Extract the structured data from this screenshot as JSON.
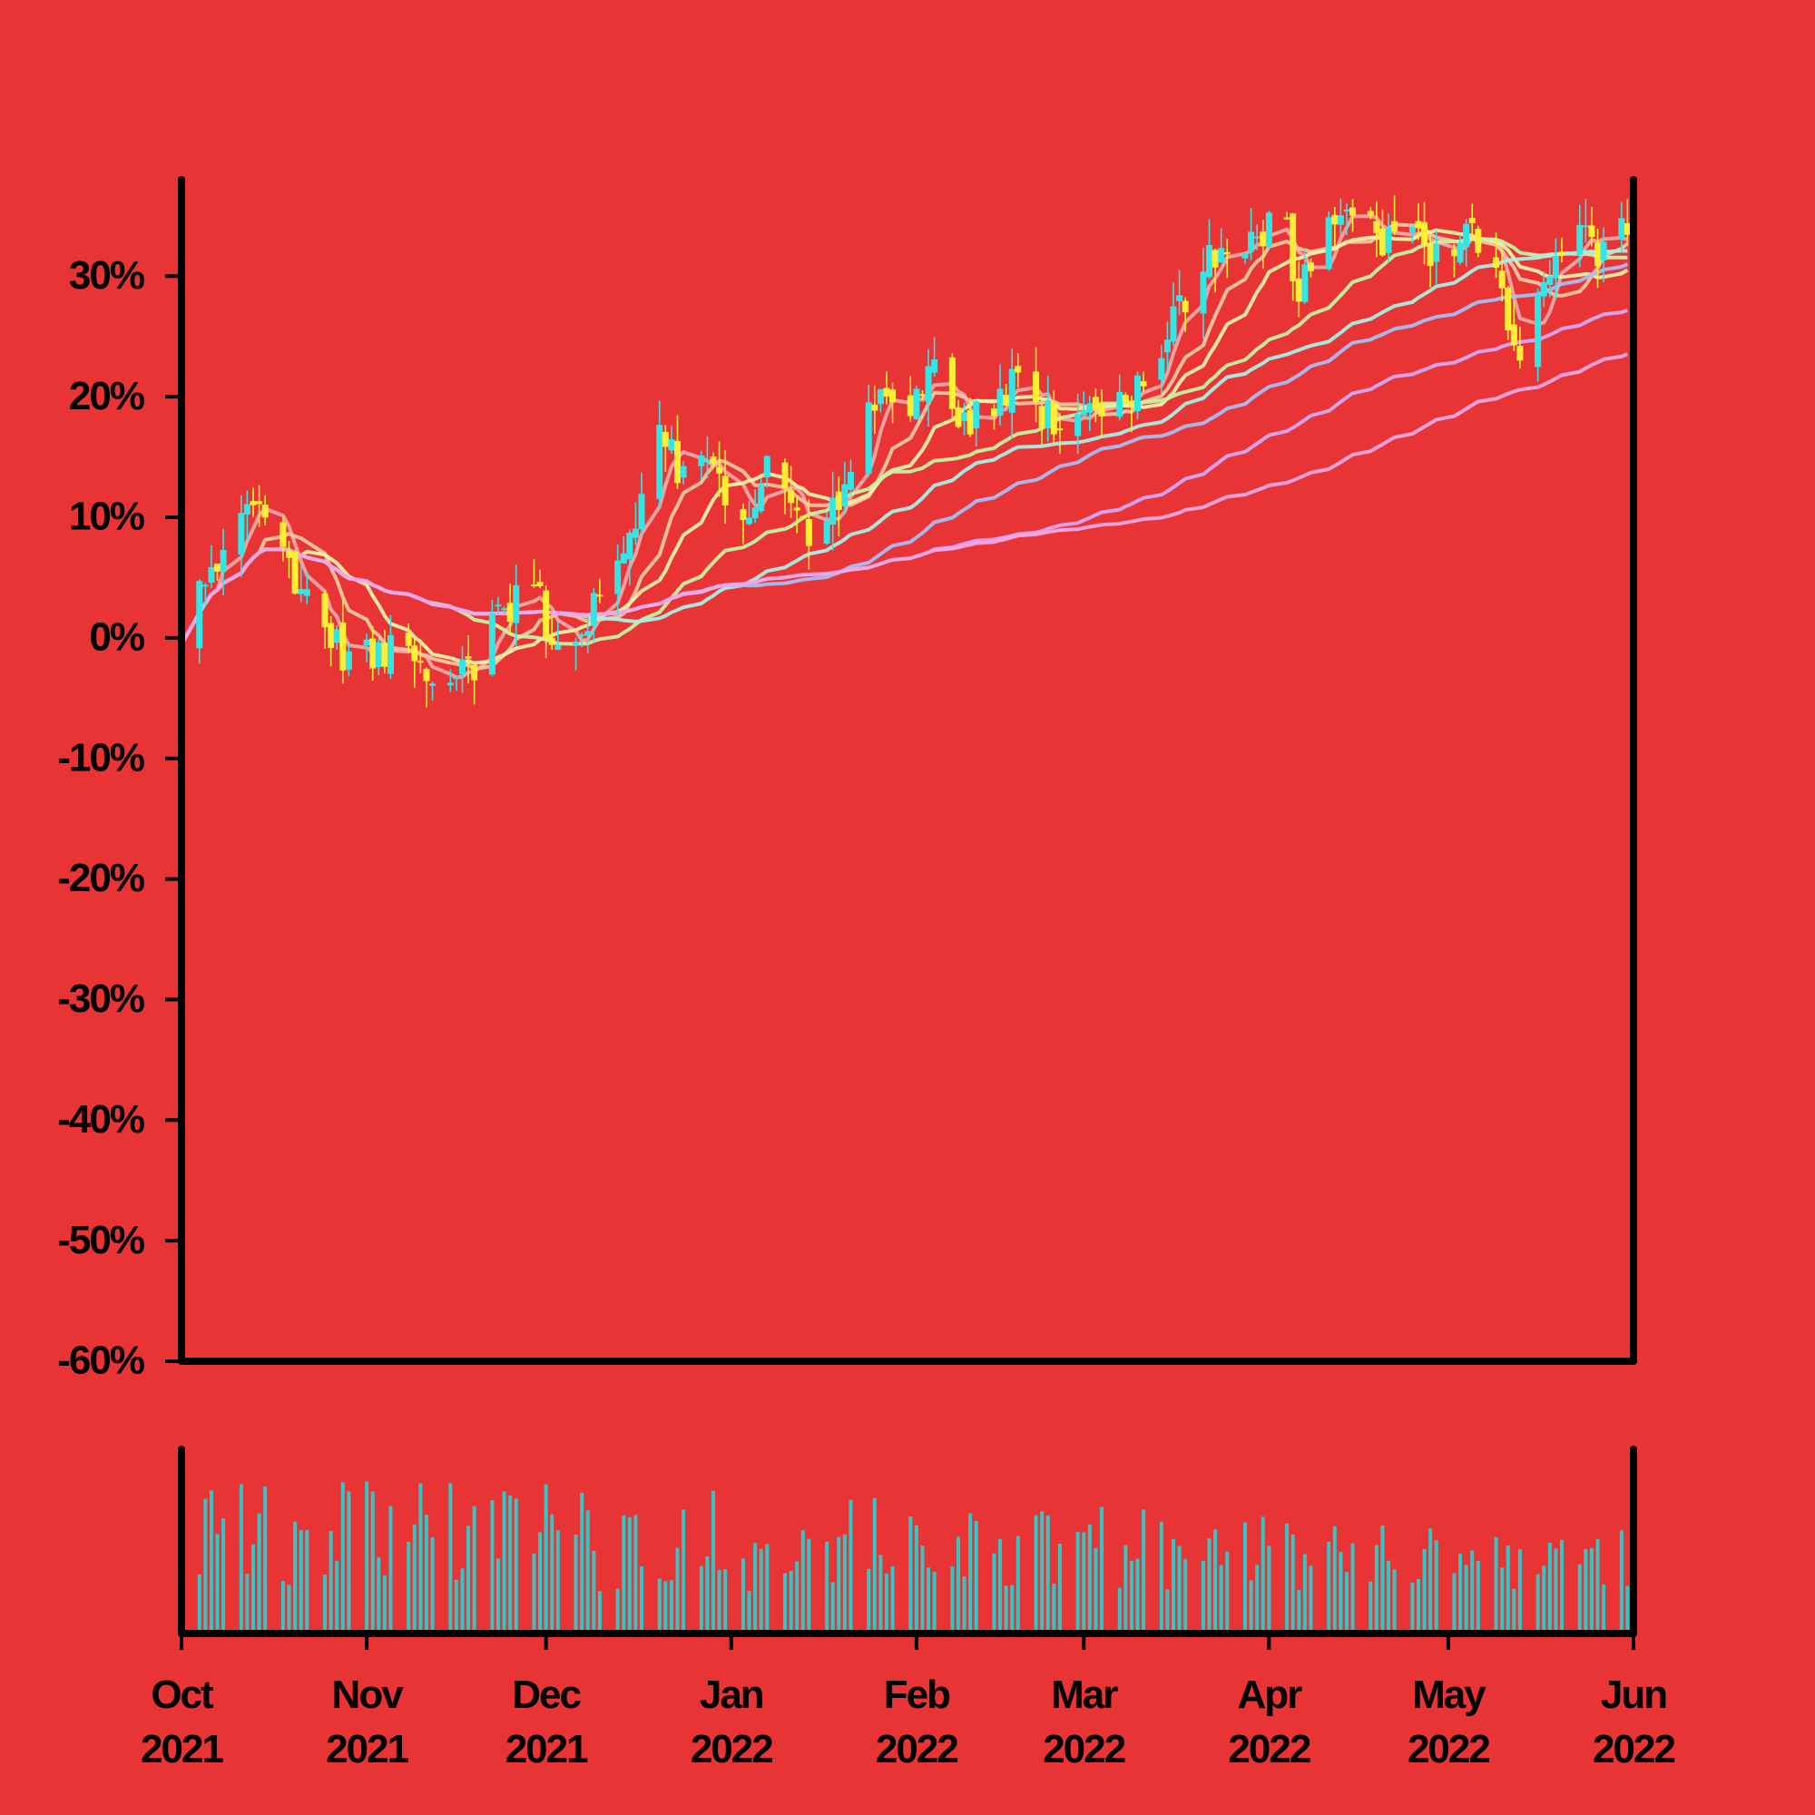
{
  "chart_data": {
    "type": "candlestick",
    "panels": [
      "price",
      "volume"
    ],
    "y_axis": {
      "unit": "%",
      "range": [
        -60,
        38
      ],
      "ticks": [
        "30%",
        "20%",
        "10%",
        "0%",
        "-10%",
        "-20%",
        "-30%",
        "-40%",
        "-50%",
        "-60%"
      ],
      "tick_values": [
        30,
        20,
        10,
        0,
        -10,
        -20,
        -30,
        -40,
        -50,
        -60
      ]
    },
    "x_axis": {
      "range": [
        "2021-10-01",
        "2022-06-01"
      ],
      "ticks": [
        {
          "date": "2021-10-01",
          "month": "Oct",
          "year": "2021"
        },
        {
          "date": "2021-11-01",
          "month": "Nov",
          "year": "2021"
        },
        {
          "date": "2021-12-01",
          "month": "Dec",
          "year": "2021"
        },
        {
          "date": "2022-01-01",
          "month": "Jan",
          "year": "2022"
        },
        {
          "date": "2022-02-01",
          "month": "Feb",
          "year": "2022"
        },
        {
          "date": "2022-03-01",
          "month": "Mar",
          "year": "2022"
        },
        {
          "date": "2022-04-01",
          "month": "Apr",
          "year": "2022"
        },
        {
          "date": "2022-05-01",
          "month": "May",
          "year": "2022"
        },
        {
          "date": "2022-06-01",
          "month": "Jun",
          "year": "2022"
        }
      ]
    },
    "price_path": [
      {
        "date": "2021-10-01",
        "value": 1
      },
      {
        "date": "2021-10-05",
        "value": 5
      },
      {
        "date": "2021-10-08",
        "value": 7
      },
      {
        "date": "2021-10-12",
        "value": 11
      },
      {
        "date": "2021-10-16",
        "value": 8
      },
      {
        "date": "2021-10-22",
        "value": 4
      },
      {
        "date": "2021-10-27",
        "value": -1
      },
      {
        "date": "2021-11-02",
        "value": -2
      },
      {
        "date": "2021-11-06",
        "value": 0
      },
      {
        "date": "2021-11-10",
        "value": -3
      },
      {
        "date": "2021-11-15",
        "value": -4
      },
      {
        "date": "2021-11-19",
        "value": -2
      },
      {
        "date": "2021-11-24",
        "value": 2
      },
      {
        "date": "2021-11-28",
        "value": 6
      },
      {
        "date": "2021-12-02",
        "value": 0
      },
      {
        "date": "2021-12-06",
        "value": -1
      },
      {
        "date": "2021-12-10",
        "value": 4
      },
      {
        "date": "2021-12-15",
        "value": 9
      },
      {
        "date": "2021-12-20",
        "value": 16
      },
      {
        "date": "2021-12-24",
        "value": 14
      },
      {
        "date": "2021-12-29",
        "value": 13
      },
      {
        "date": "2022-01-02",
        "value": 9
      },
      {
        "date": "2022-01-07",
        "value": 14
      },
      {
        "date": "2022-01-12",
        "value": 9
      },
      {
        "date": "2022-01-16",
        "value": 8
      },
      {
        "date": "2022-01-21",
        "value": 14
      },
      {
        "date": "2022-01-26",
        "value": 21
      },
      {
        "date": "2022-01-30",
        "value": 19
      },
      {
        "date": "2022-02-04",
        "value": 22
      },
      {
        "date": "2022-02-09",
        "value": 18
      },
      {
        "date": "2022-02-14",
        "value": 20
      },
      {
        "date": "2022-02-19",
        "value": 22
      },
      {
        "date": "2022-02-24",
        "value": 17
      },
      {
        "date": "2022-03-01",
        "value": 19
      },
      {
        "date": "2022-03-05",
        "value": 18
      },
      {
        "date": "2022-03-09",
        "value": 20
      },
      {
        "date": "2022-03-14",
        "value": 23
      },
      {
        "date": "2022-03-19",
        "value": 30
      },
      {
        "date": "2022-03-24",
        "value": 32
      },
      {
        "date": "2022-03-29",
        "value": 33
      },
      {
        "date": "2022-04-03",
        "value": 36
      },
      {
        "date": "2022-04-06",
        "value": 28
      },
      {
        "date": "2022-04-10",
        "value": 33
      },
      {
        "date": "2022-04-15",
        "value": 36
      },
      {
        "date": "2022-04-20",
        "value": 33
      },
      {
        "date": "2022-04-25",
        "value": 34
      },
      {
        "date": "2022-04-30",
        "value": 31
      },
      {
        "date": "2022-05-05",
        "value": 34
      },
      {
        "date": "2022-05-09",
        "value": 30
      },
      {
        "date": "2022-05-13",
        "value": 23
      },
      {
        "date": "2022-05-17",
        "value": 29
      },
      {
        "date": "2022-05-22",
        "value": 33
      },
      {
        "date": "2022-05-27",
        "value": 32
      },
      {
        "date": "2022-06-01",
        "value": 34
      }
    ],
    "volume_visible": true,
    "moving_averages": [
      {
        "period": 5,
        "color": "#f4a6a6"
      },
      {
        "period": 10,
        "color": "#f6c6a0"
      },
      {
        "period": 15,
        "color": "#f4f0a6"
      },
      {
        "period": 30,
        "color": "#c6f2a6"
      },
      {
        "period": 45,
        "color": "#a6f0e6"
      },
      {
        "period": 60,
        "color": "#a6bef4"
      },
      {
        "period": 90,
        "color": "#d6a6f4"
      },
      {
        "period": 120,
        "color": "#f4a6e6"
      }
    ],
    "colors": {
      "background": "#e83434",
      "up": "#33e6e6",
      "down": "#ffee33",
      "volume": "#33c6c6",
      "axis": "#000000"
    }
  }
}
